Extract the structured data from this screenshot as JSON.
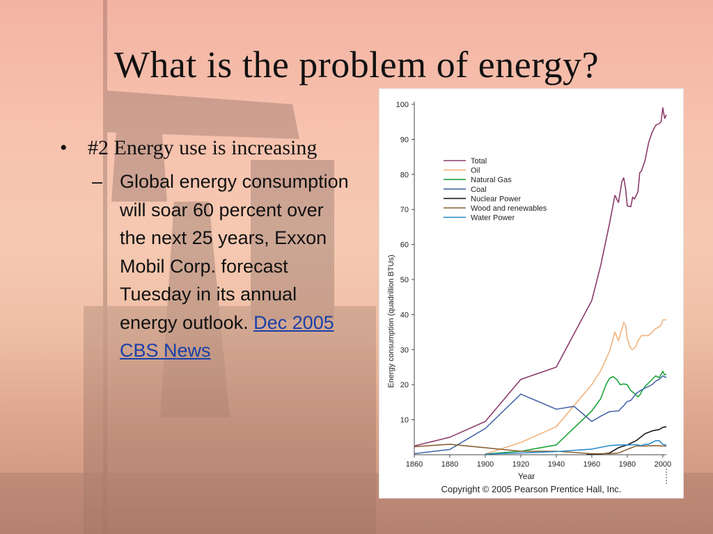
{
  "slide": {
    "title": "What is the problem of energy?",
    "bullet": "#2 Energy use is increasing",
    "sub_bullet_text": "Global energy consumption will soar 60 percent over the next 25 years, Exxon Mobil Corp. forecast Tuesday in its annual energy outlook.",
    "link_text": "Dec 2005 CBS News"
  },
  "colors": {
    "Total": "#8b3a6b",
    "Oil": "#f0b47d",
    "Natural Gas": "#1fa33a",
    "Coal": "#4867a8",
    "Nuclear Power": "#1a1a1a",
    "Wood and renewables": "#8a6236",
    "Water Power": "#2a8cc9"
  },
  "chart_data": {
    "type": "line",
    "title": "",
    "xlabel": "Year",
    "ylabel": "Energy consumption (quadrillion BTUs)",
    "xlim": [
      1860,
      2002
    ],
    "ylim": [
      0,
      100
    ],
    "x_ticks": [
      1860,
      1880,
      1900,
      1920,
      1940,
      1960,
      1980,
      2000
    ],
    "extra_x_tick": 2002,
    "y_ticks": [
      10,
      20,
      30,
      40,
      50,
      60,
      70,
      80,
      90,
      100
    ],
    "legend_position": "top-left inside",
    "copyright": "Copyright © 2005 Pearson Prentice Hall, Inc.",
    "series": [
      {
        "name": "Total",
        "points": [
          [
            1860,
            2.5
          ],
          [
            1880,
            5
          ],
          [
            1900,
            9.5
          ],
          [
            1920,
            21.5
          ],
          [
            1940,
            25
          ],
          [
            1960,
            44
          ],
          [
            1965,
            54
          ],
          [
            1970,
            66
          ],
          [
            1973,
            74
          ],
          [
            1975,
            72
          ],
          [
            1977,
            78
          ],
          [
            1978,
            79
          ],
          [
            1979,
            76
          ],
          [
            1980,
            71
          ],
          [
            1982,
            70.8
          ],
          [
            1983,
            73.5
          ],
          [
            1984,
            73
          ],
          [
            1985,
            74
          ],
          [
            1986,
            75
          ],
          [
            1987,
            80.5
          ],
          [
            1988,
            81
          ],
          [
            1990,
            84
          ],
          [
            1992,
            89
          ],
          [
            1994,
            92
          ],
          [
            1996,
            94
          ],
          [
            1998,
            94.5
          ],
          [
            1999,
            95
          ],
          [
            2000,
            99
          ],
          [
            2001,
            96
          ],
          [
            2002,
            97
          ]
        ]
      },
      {
        "name": "Oil",
        "points": [
          [
            1900,
            0.2
          ],
          [
            1920,
            3.5
          ],
          [
            1940,
            8
          ],
          [
            1960,
            20
          ],
          [
            1965,
            24
          ],
          [
            1970,
            29.5
          ],
          [
            1973,
            35
          ],
          [
            1975,
            32.5
          ],
          [
            1977,
            36
          ],
          [
            1978,
            37.8
          ],
          [
            1979,
            37
          ],
          [
            1980,
            33
          ],
          [
            1982,
            30.3
          ],
          [
            1983,
            30
          ],
          [
            1985,
            31
          ],
          [
            1986,
            32.5
          ],
          [
            1988,
            34
          ],
          [
            1990,
            34
          ],
          [
            1992,
            34
          ],
          [
            1994,
            35
          ],
          [
            1996,
            36
          ],
          [
            1998,
            36.5
          ],
          [
            1999,
            37
          ],
          [
            2000,
            38.5
          ],
          [
            2002,
            38.5
          ]
        ]
      },
      {
        "name": "Natural Gas",
        "points": [
          [
            1900,
            0.2
          ],
          [
            1920,
            1
          ],
          [
            1940,
            2.8
          ],
          [
            1960,
            12.5
          ],
          [
            1965,
            16
          ],
          [
            1968,
            20
          ],
          [
            1970,
            21.8
          ],
          [
            1972,
            22.3
          ],
          [
            1974,
            21.5
          ],
          [
            1976,
            20
          ],
          [
            1978,
            20.2
          ],
          [
            1980,
            20
          ],
          [
            1982,
            18.3
          ],
          [
            1984,
            17.5
          ],
          [
            1986,
            16.5
          ],
          [
            1987,
            17
          ],
          [
            1988,
            18
          ],
          [
            1990,
            19.5
          ],
          [
            1992,
            20.5
          ],
          [
            1994,
            21.5
          ],
          [
            1996,
            22.5
          ],
          [
            1998,
            22
          ],
          [
            2000,
            23.8
          ],
          [
            2001,
            22.8
          ],
          [
            2002,
            23
          ]
        ]
      },
      {
        "name": "Coal",
        "points": [
          [
            1860,
            0.3
          ],
          [
            1880,
            1.5
          ],
          [
            1900,
            7.5
          ],
          [
            1920,
            17.3
          ],
          [
            1940,
            13
          ],
          [
            1950,
            13.8
          ],
          [
            1960,
            9.5
          ],
          [
            1965,
            11
          ],
          [
            1970,
            12.3
          ],
          [
            1975,
            12.5
          ],
          [
            1978,
            14
          ],
          [
            1980,
            15.2
          ],
          [
            1982,
            15.5
          ],
          [
            1985,
            17.5
          ],
          [
            1988,
            18.5
          ],
          [
            1990,
            19
          ],
          [
            1992,
            19.5
          ],
          [
            1994,
            20
          ],
          [
            1996,
            21
          ],
          [
            1998,
            21.5
          ],
          [
            2000,
            22.5
          ],
          [
            2002,
            22
          ]
        ]
      },
      {
        "name": "Nuclear Power",
        "points": [
          [
            1957,
            0.05
          ],
          [
            1965,
            0.2
          ],
          [
            1970,
            0.5
          ],
          [
            1975,
            2
          ],
          [
            1980,
            2.8
          ],
          [
            1985,
            4
          ],
          [
            1990,
            6
          ],
          [
            1994,
            6.8
          ],
          [
            1996,
            7
          ],
          [
            1998,
            7.2
          ],
          [
            2000,
            7.8
          ],
          [
            2002,
            8
          ]
        ]
      },
      {
        "name": "Wood and renewables",
        "points": [
          [
            1860,
            2.3
          ],
          [
            1880,
            3
          ],
          [
            1900,
            2
          ],
          [
            1920,
            1
          ],
          [
            1940,
            1
          ],
          [
            1960,
            0.3
          ],
          [
            1970,
            0.3
          ],
          [
            1975,
            0.5
          ],
          [
            1980,
            1.5
          ],
          [
            1985,
            2.5
          ],
          [
            1990,
            2.5
          ],
          [
            1995,
            2.6
          ],
          [
            2000,
            2.5
          ],
          [
            2002,
            2.5
          ]
        ]
      },
      {
        "name": "Water Power",
        "points": [
          [
            1900,
            0.2
          ],
          [
            1920,
            0.5
          ],
          [
            1940,
            0.9
          ],
          [
            1960,
            1.6
          ],
          [
            1970,
            2.6
          ],
          [
            1975,
            2.8
          ],
          [
            1980,
            2.8
          ],
          [
            1985,
            2.9
          ],
          [
            1988,
            2.6
          ],
          [
            1990,
            3
          ],
          [
            1992,
            3
          ],
          [
            1994,
            3.5
          ],
          [
            1996,
            4
          ],
          [
            1998,
            4
          ],
          [
            2000,
            3
          ],
          [
            2002,
            2.7
          ]
        ]
      }
    ]
  }
}
